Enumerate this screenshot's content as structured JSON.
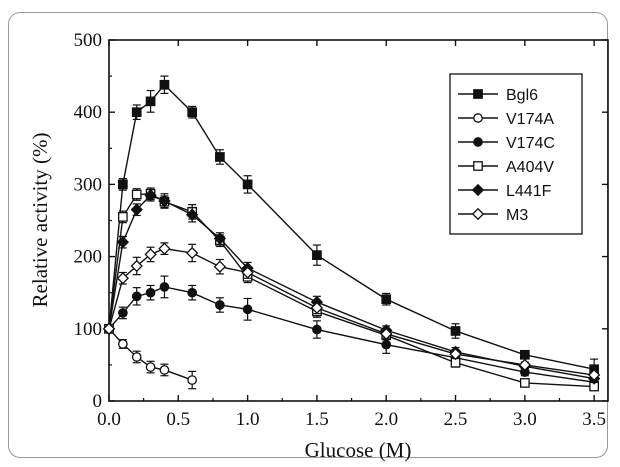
{
  "chart_data": {
    "type": "line",
    "xlabel": "Glucose (M)",
    "ylabel": "Relative activity (%)",
    "xlim": [
      0.0,
      3.6
    ],
    "ylim": [
      0,
      500
    ],
    "xticks": [
      "0.0",
      "0.5",
      "1.0",
      "1.5",
      "2.0",
      "2.5",
      "3.0",
      "3.5"
    ],
    "yticks": [
      "0",
      "100",
      "200",
      "300",
      "400",
      "500"
    ],
    "legend_position": "top-right",
    "grid": false,
    "series": [
      {
        "name": "Bgl6",
        "marker": "square",
        "fill": "filled",
        "x": [
          0,
          0.1,
          0.2,
          0.3,
          0.4,
          0.6,
          0.8,
          1.0,
          1.5,
          2.0,
          2.5,
          3.0,
          3.5
        ],
        "y": [
          100,
          300,
          400,
          415,
          438,
          400,
          338,
          300,
          202,
          141,
          97,
          64,
          44
        ],
        "err": [
          0,
          8,
          10,
          15,
          12,
          8,
          10,
          12,
          14,
          8,
          10,
          5,
          14
        ]
      },
      {
        "name": "V174A",
        "marker": "circle",
        "fill": "open",
        "x": [
          0,
          0.1,
          0.2,
          0.3,
          0.4,
          0.6
        ],
        "y": [
          100,
          79,
          61,
          47,
          43,
          29
        ],
        "err": [
          0,
          6,
          8,
          8,
          8,
          12
        ]
      },
      {
        "name": "V174C",
        "marker": "circle",
        "fill": "filled",
        "x": [
          0,
          0.1,
          0.2,
          0.3,
          0.4,
          0.6,
          0.8,
          1.0,
          1.5,
          2.0,
          2.5,
          3.0,
          3.5
        ],
        "y": [
          100,
          122,
          145,
          150,
          158,
          150,
          133,
          127,
          99,
          78,
          60,
          40,
          26
        ],
        "err": [
          0,
          8,
          12,
          10,
          15,
          10,
          10,
          15,
          12,
          12,
          10,
          5,
          5
        ]
      },
      {
        "name": "A404V",
        "marker": "square",
        "fill": "open",
        "x": [
          0,
          0.1,
          0.2,
          0.3,
          0.4,
          0.6,
          0.8,
          1.0,
          1.5,
          2.0,
          2.5,
          3.0,
          3.5
        ],
        "y": [
          100,
          255,
          286,
          287,
          276,
          262,
          222,
          172,
          124,
          91,
          53,
          25,
          20
        ],
        "err": [
          0,
          8,
          8,
          8,
          8,
          10,
          8,
          8,
          8,
          6,
          6,
          4,
          4
        ]
      },
      {
        "name": "L441F",
        "marker": "diamond",
        "fill": "filled",
        "x": [
          0,
          0.1,
          0.2,
          0.3,
          0.4,
          0.6,
          0.8,
          1.0,
          1.5,
          2.0,
          2.5,
          3.0,
          3.5
        ],
        "y": [
          100,
          220,
          265,
          285,
          277,
          258,
          225,
          184,
          137,
          98,
          68,
          48,
          31
        ],
        "err": [
          0,
          8,
          8,
          8,
          10,
          10,
          8,
          8,
          8,
          6,
          6,
          4,
          4
        ]
      },
      {
        "name": "M3",
        "marker": "diamond",
        "fill": "open",
        "x": [
          0,
          0.1,
          0.2,
          0.3,
          0.4,
          0.6,
          0.8,
          1.0,
          1.5,
          2.0,
          2.5,
          3.0,
          3.5
        ],
        "y": [
          100,
          170,
          187,
          203,
          211,
          205,
          186,
          178,
          129,
          93,
          65,
          50,
          36
        ],
        "err": [
          0,
          8,
          12,
          10,
          8,
          12,
          10,
          8,
          8,
          6,
          6,
          4,
          4
        ]
      }
    ]
  }
}
